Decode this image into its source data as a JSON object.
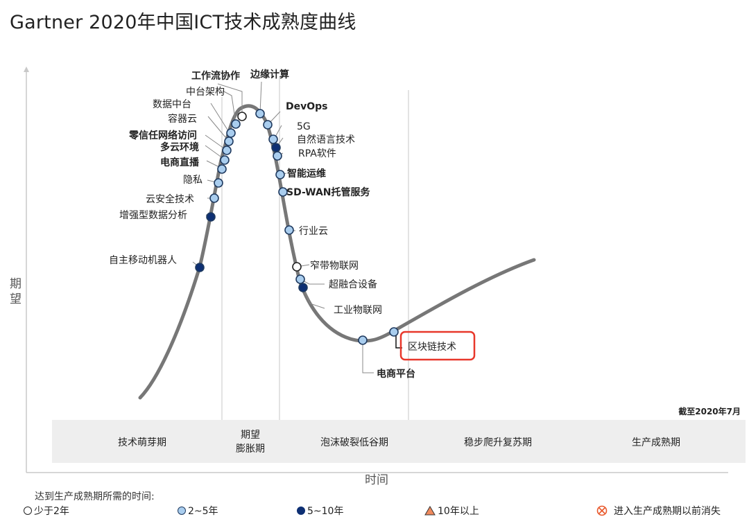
{
  "title": "Gartner 2020年中国ICT技术成熟度曲线",
  "chart_data": {
    "type": "hype_cycle",
    "title": "Gartner 2020年中国ICT技术成熟度曲线",
    "ylabel": "期望",
    "xlabel": "时间",
    "note": "截至2020年7月",
    "phases": [
      "技术萌芽期",
      "期望膨胀期",
      "泡沫破裂低谷期",
      "稳步爬升复苏期",
      "生产成熟期"
    ],
    "phase_label_expectations": [
      "期望",
      "膨胀期"
    ],
    "technologies": [
      {
        "name": "工作流协作",
        "category": "less_than_2"
      },
      {
        "name": "边缘计算",
        "category": "2_to_5"
      },
      {
        "name": "中台架构",
        "category": "2_to_5"
      },
      {
        "name": "数据中台",
        "category": "2_to_5"
      },
      {
        "name": "容器云",
        "category": "2_to_5"
      },
      {
        "name": "零信任网络访问",
        "category": "2_to_5"
      },
      {
        "name": "多云环境",
        "category": "2_to_5"
      },
      {
        "name": "电商直播",
        "category": "2_to_5"
      },
      {
        "name": "隐私",
        "category": "2_to_5"
      },
      {
        "name": "云安全技术",
        "category": "2_to_5"
      },
      {
        "name": "增强型数据分析",
        "category": "5_to_10"
      },
      {
        "name": "自主移动机器人",
        "category": "5_to_10"
      },
      {
        "name": "DevOps",
        "category": "2_to_5"
      },
      {
        "name": "5G",
        "category": "2_to_5"
      },
      {
        "name": "自然语言技术",
        "category": "5_to_10"
      },
      {
        "name": "RPA软件",
        "category": "2_to_5"
      },
      {
        "name": "智能运维",
        "category": "2_to_5"
      },
      {
        "name": "SD-WAN托管服务",
        "category": "2_to_5"
      },
      {
        "name": "行业云",
        "category": "2_to_5"
      },
      {
        "name": "窄带物联网",
        "category": "less_than_2"
      },
      {
        "name": "超融合设备",
        "category": "2_to_5"
      },
      {
        "name": "工业物联网",
        "category": "5_to_10"
      },
      {
        "name": "电商平台",
        "category": "2_to_5"
      },
      {
        "name": "区块链技术",
        "category": "2_to_5",
        "highlighted": true
      }
    ],
    "legend": {
      "title": "达到生产成熟期所需的时间:",
      "items": [
        {
          "key": "less_than_2",
          "label": "少于2年",
          "shape": "circle",
          "color": "#ffffff"
        },
        {
          "key": "2_to_5",
          "label": "2~5年",
          "shape": "circle",
          "color": "#a9cdee"
        },
        {
          "key": "5_to_10",
          "label": "5~10年",
          "shape": "circle",
          "color": "#0d2f73"
        },
        {
          "key": "more_than_10",
          "label": "10年以上",
          "shape": "triangle",
          "color": "#f08a5d"
        },
        {
          "key": "obsolete",
          "label": "进入生产成熟期以前消失",
          "shape": "crossed-circle",
          "color": "#e8572a"
        }
      ]
    },
    "colors": {
      "curve": "#777777",
      "highlight_box": "#e8372a",
      "marker_edge": "#1f3a5f",
      "phase_band": "#eeeeee"
    }
  }
}
